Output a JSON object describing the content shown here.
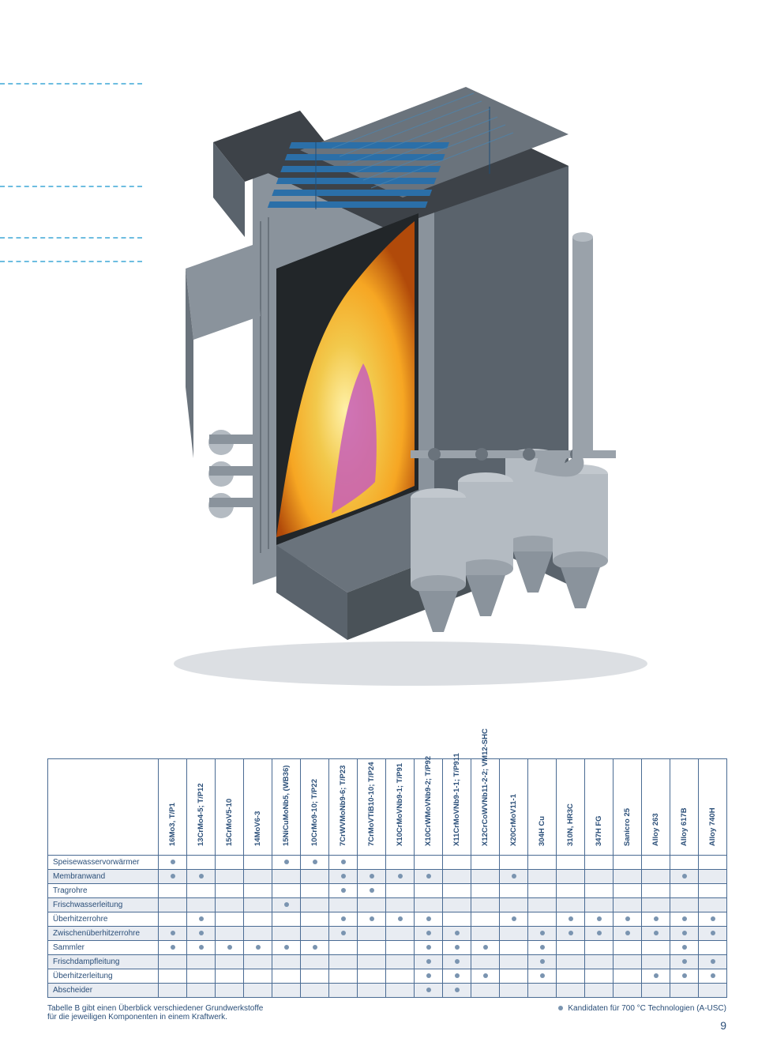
{
  "illustration": {
    "bg": "#ffffff",
    "steel_dark": "#3d4248",
    "steel_mid": "#5a636c",
    "steel_light": "#8a939c",
    "steel_vlight": "#b4bbc2",
    "flame_outer": "#f6a623",
    "flame_mid": "#f2c94c",
    "flame_inner": "#c75eb8",
    "tube_blue": "#2b6fa8",
    "hopper_gray": "#9aa2aa"
  },
  "dashed_lines_top": [
    105,
    235,
    300,
    330
  ],
  "table": {
    "columns": [
      "16Mo3, T/P1",
      "13CrMo4-5; T/P12",
      "15CrMoV5-10",
      "14MoV6-3",
      "15NiCuMoNb5,\n(WB36)",
      "10CrMo9-10; T/P22",
      "7CrWVMoNb9-6;\nT/P23",
      "7CrMoVTiB10-10;\nT/P24",
      "X10CrMoVNb9-1;\nT/P91",
      "X10CrWMoVNb9-2;\nT/P92",
      "X11CrMoVNb9-1-1;\nT/P911",
      "X12CrCoWVNb11-2-2;\nVM12-SHC",
      "X20CrMoV11-1",
      "304H Cu",
      "310N, HR3C",
      "347H FG",
      "Sanicro 25",
      "Alloy 263",
      "Alloy 617B",
      "Alloy 740H"
    ],
    "rows": [
      {
        "label": "Speisewasservorwärmer",
        "cells": [
          1,
          0,
          0,
          0,
          1,
          1,
          1,
          0,
          0,
          0,
          0,
          0,
          0,
          0,
          0,
          0,
          0,
          0,
          0,
          0
        ]
      },
      {
        "label": "Membranwand",
        "cells": [
          1,
          1,
          0,
          0,
          0,
          0,
          1,
          1,
          1,
          1,
          0,
          0,
          1,
          0,
          0,
          0,
          0,
          0,
          1,
          0
        ]
      },
      {
        "label": "Tragrohre",
        "cells": [
          0,
          0,
          0,
          0,
          0,
          0,
          1,
          1,
          0,
          0,
          0,
          0,
          0,
          0,
          0,
          0,
          0,
          0,
          0,
          0
        ]
      },
      {
        "label": "Frischwasserleitung",
        "cells": [
          0,
          0,
          0,
          0,
          1,
          0,
          0,
          0,
          0,
          0,
          0,
          0,
          0,
          0,
          0,
          0,
          0,
          0,
          0,
          0
        ]
      },
      {
        "label": "Überhitzerrohre",
        "cells": [
          0,
          1,
          0,
          0,
          0,
          0,
          1,
          1,
          1,
          1,
          0,
          0,
          1,
          0,
          1,
          1,
          1,
          1,
          1,
          1
        ]
      },
      {
        "label": "Zwischenüberhitzerrohre",
        "cells": [
          1,
          1,
          0,
          0,
          0,
          0,
          1,
          0,
          0,
          1,
          1,
          0,
          0,
          1,
          1,
          1,
          1,
          1,
          1,
          1
        ]
      },
      {
        "label": "Sammler",
        "cells": [
          1,
          1,
          1,
          1,
          1,
          1,
          0,
          0,
          0,
          1,
          1,
          1,
          0,
          1,
          0,
          0,
          0,
          0,
          1,
          0
        ]
      },
      {
        "label": "Frischdampfleitung",
        "cells": [
          0,
          0,
          0,
          0,
          0,
          0,
          0,
          0,
          0,
          1,
          1,
          0,
          0,
          1,
          0,
          0,
          0,
          0,
          1,
          1
        ]
      },
      {
        "label": "Überhitzerleitung",
        "cells": [
          0,
          0,
          0,
          0,
          0,
          0,
          0,
          0,
          0,
          1,
          1,
          1,
          0,
          1,
          0,
          0,
          0,
          1,
          1,
          1
        ]
      },
      {
        "label": "Abscheider",
        "cells": [
          0,
          0,
          0,
          0,
          0,
          0,
          0,
          0,
          0,
          1,
          1,
          0,
          0,
          0,
          0,
          0,
          0,
          0,
          0,
          0
        ]
      }
    ],
    "alt_row_bg": "#e8ecf2",
    "border_color": "#4a6b93",
    "text_color": "#2a4e78",
    "dot_color": "#7a94b0"
  },
  "caption": {
    "left": "Tabelle B gibt einen Überblick verschiedener Grundwerkstoffe\nfür die jeweiligen Komponenten in einem Kraftwerk.",
    "right": "Kandidaten für 700 °C Technologien (A-USC)"
  },
  "page_number": "9"
}
